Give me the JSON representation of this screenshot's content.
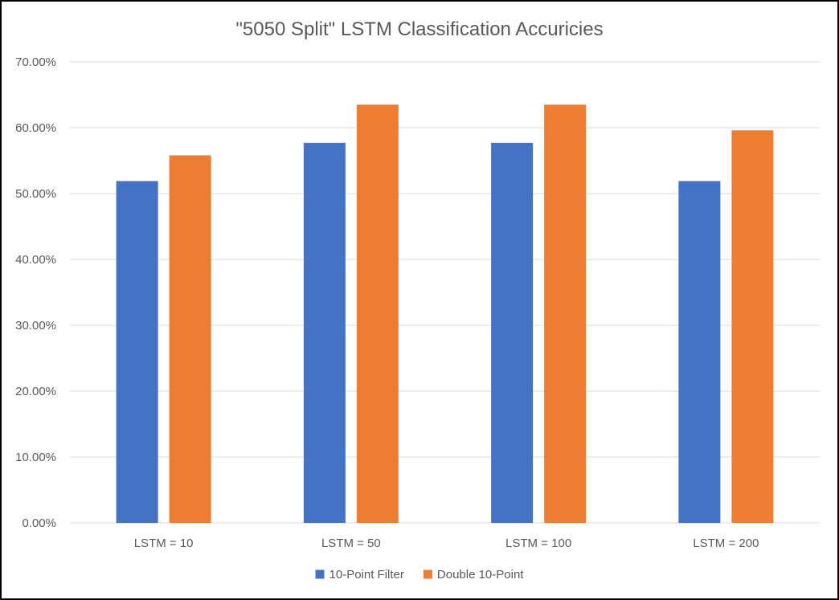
{
  "chart_data": {
    "type": "bar",
    "title": "\"5050 Split\" LSTM Classification Accuricies",
    "xlabel": "",
    "ylabel": "",
    "categories": [
      "LSTM = 10",
      "LSTM = 50",
      "LSTM = 100",
      "LSTM = 200"
    ],
    "series": [
      {
        "name": "10-Point Filter",
        "color": "#4472c4",
        "values": [
          0.519,
          0.577,
          0.577,
          0.519
        ]
      },
      {
        "name": "Double 10-Point",
        "color": "#ed7d31",
        "values": [
          0.558,
          0.635,
          0.635,
          0.596
        ]
      }
    ],
    "ylim": [
      0,
      0.7
    ],
    "yticks": [
      0,
      0.1,
      0.2,
      0.3,
      0.4,
      0.5,
      0.6,
      0.7
    ],
    "ytick_labels": [
      "0.00%",
      "10.00%",
      "20.00%",
      "30.00%",
      "40.00%",
      "50.00%",
      "60.00%",
      "70.00%"
    ],
    "grid": true,
    "legend_position": "bottom"
  }
}
